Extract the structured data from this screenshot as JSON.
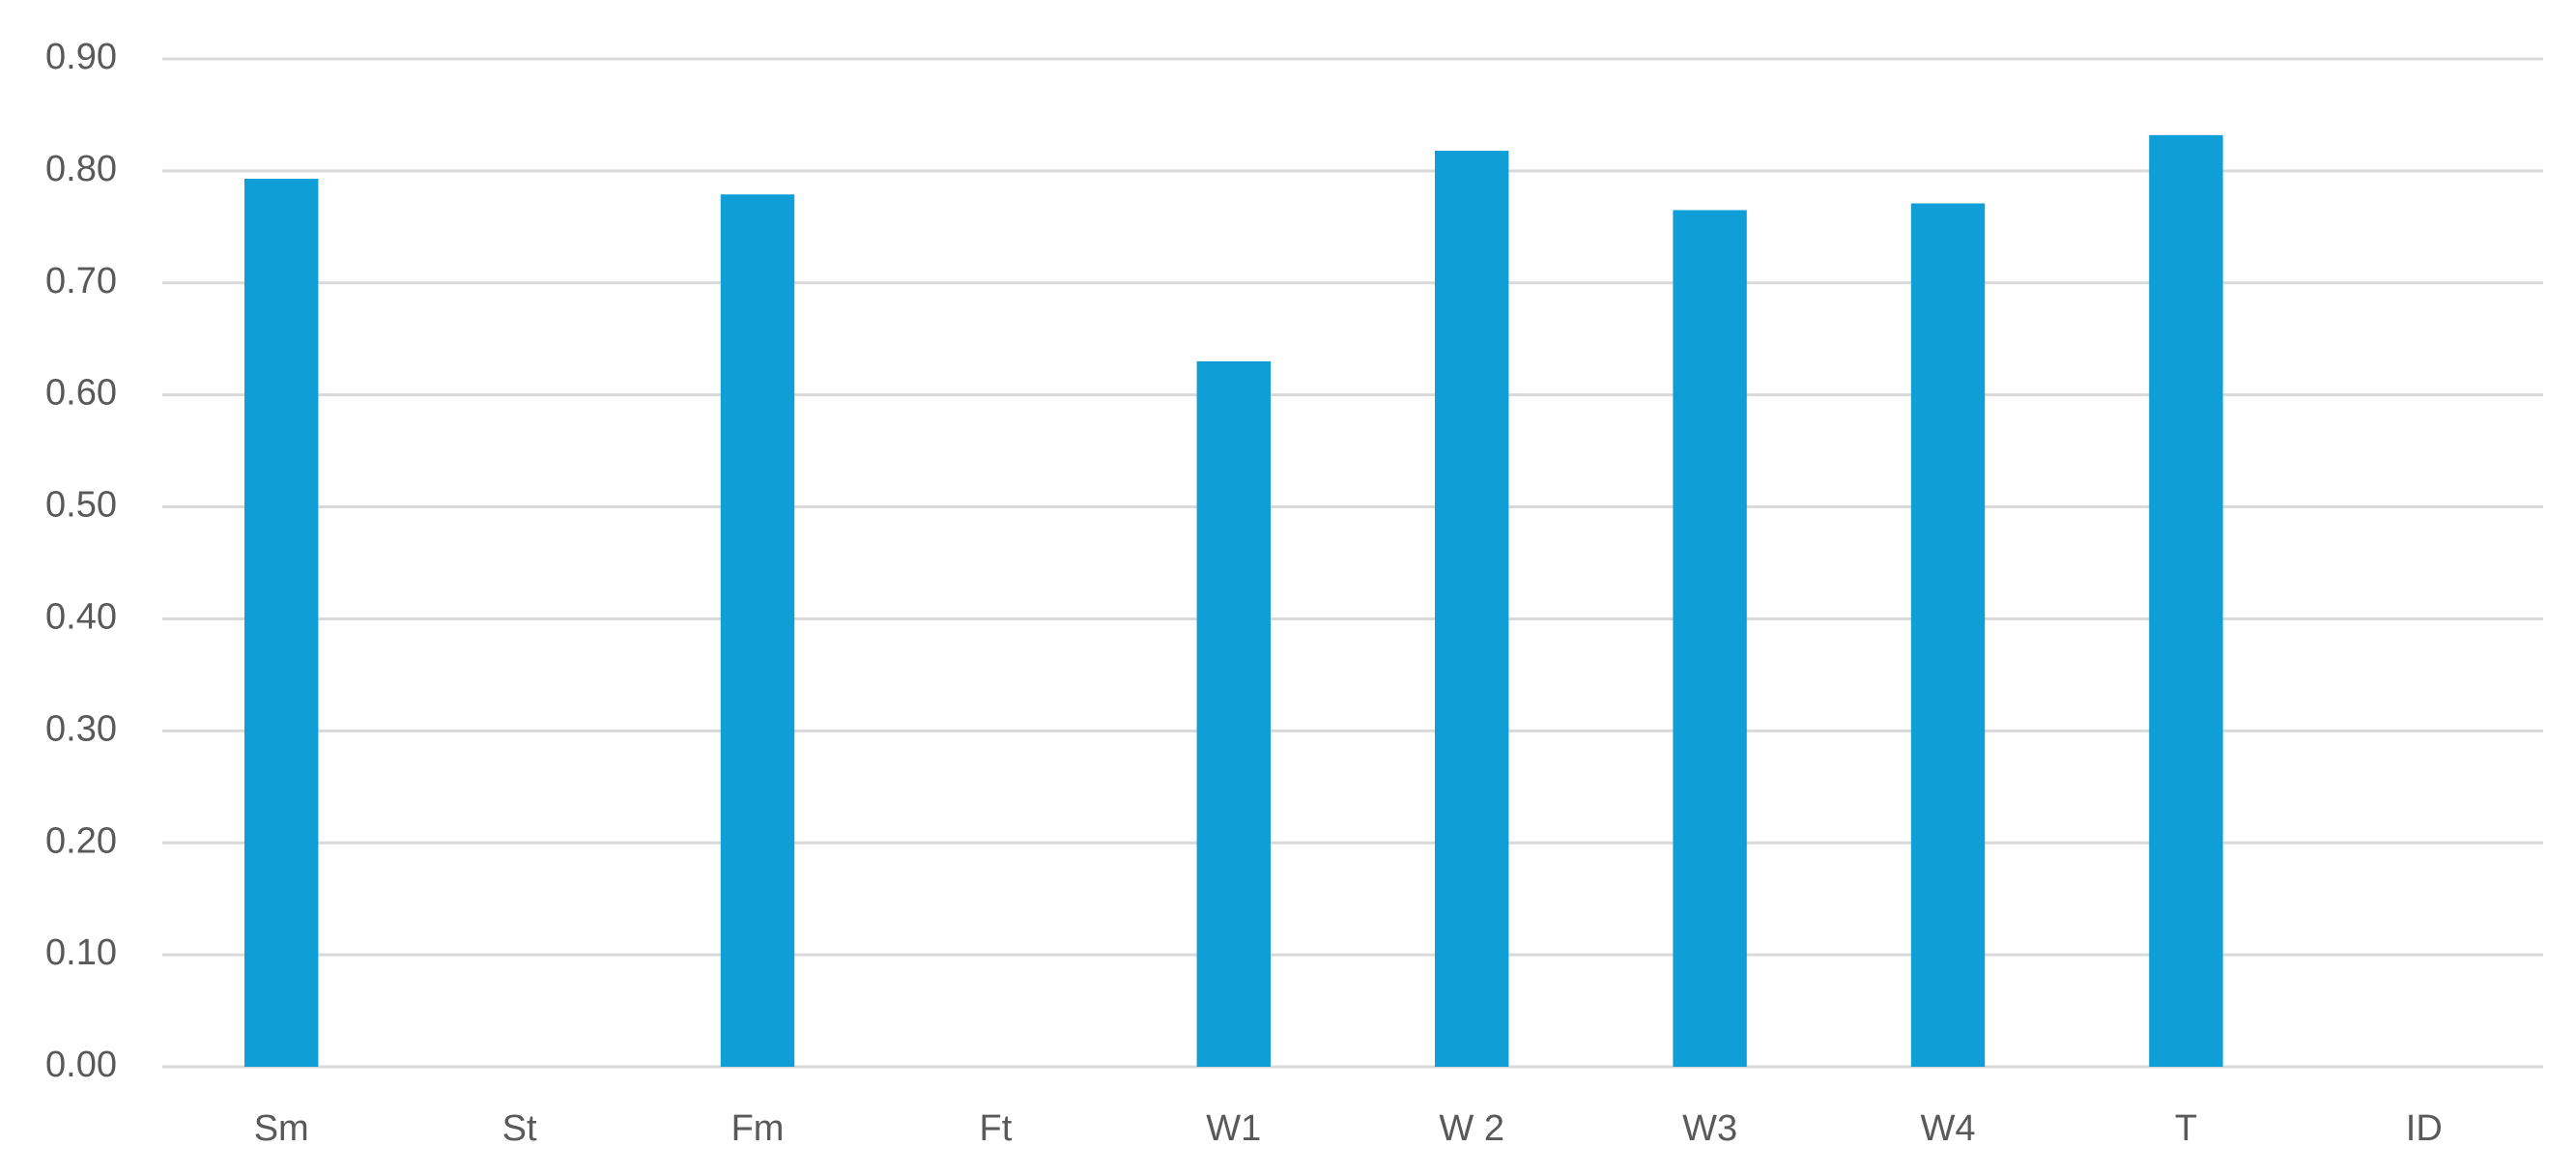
{
  "chart_data": {
    "type": "bar",
    "categories": [
      "Sm",
      "St",
      "Fm",
      "Ft",
      "W1",
      "W 2",
      "W3",
      "W4",
      "T",
      "ID"
    ],
    "values": [
      0.793,
      null,
      0.779,
      null,
      0.63,
      0.818,
      0.765,
      0.771,
      0.832,
      null
    ],
    "color": "#0f9ed5",
    "ylim": [
      0,
      0.9
    ],
    "yticks": [
      {
        "value": 0,
        "label": "0.00"
      },
      {
        "value": 0.1,
        "label": "0.10"
      },
      {
        "value": 0.2,
        "label": "0.20"
      },
      {
        "value": 0.3,
        "label": "0.30"
      },
      {
        "value": 0.4,
        "label": "0.40"
      },
      {
        "value": 0.5,
        "label": "0.50"
      },
      {
        "value": 0.6,
        "label": "0.60"
      },
      {
        "value": 0.7,
        "label": "0.70"
      },
      {
        "value": 0.8,
        "label": "0.80"
      },
      {
        "value": 0.9,
        "label": "0.90"
      }
    ],
    "grid": true
  }
}
